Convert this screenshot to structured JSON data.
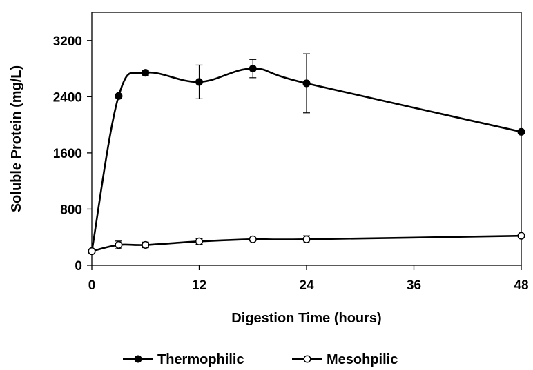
{
  "chart_data": {
    "type": "line",
    "title": "",
    "xlabel": "Digestion Time (hours)",
    "ylabel": "Soluble Protein (mg/L)",
    "xlim": [
      0,
      48
    ],
    "ylim": [
      0,
      3600
    ],
    "xticks": [
      0,
      12,
      24,
      36,
      48
    ],
    "yticks": [
      0,
      800,
      1600,
      2400,
      3200
    ],
    "grid": false,
    "legend_position": "bottom-center",
    "series": [
      {
        "name": "Thermophilic",
        "marker": "filled-circle",
        "color": "#000000",
        "points": [
          {
            "x": 0,
            "y": 200,
            "err": 0
          },
          {
            "x": 3,
            "y": 2410,
            "err": 25
          },
          {
            "x": 6,
            "y": 2740,
            "err": 35
          },
          {
            "x": 12,
            "y": 2610,
            "err": 240
          },
          {
            "x": 18,
            "y": 2800,
            "err": 130
          },
          {
            "x": 24,
            "y": 2590,
            "err": 420
          },
          {
            "x": 48,
            "y": 1900,
            "err": 20
          }
        ]
      },
      {
        "name": "Mesohpilic",
        "marker": "open-circle",
        "color": "#000000",
        "points": [
          {
            "x": 0,
            "y": 200,
            "err": 0
          },
          {
            "x": 3,
            "y": 290,
            "err": 55
          },
          {
            "x": 6,
            "y": 290,
            "err": 40
          },
          {
            "x": 12,
            "y": 340,
            "err": 40
          },
          {
            "x": 18,
            "y": 370,
            "err": 20
          },
          {
            "x": 24,
            "y": 370,
            "err": 50
          },
          {
            "x": 48,
            "y": 420,
            "err": 10
          }
        ]
      }
    ]
  }
}
